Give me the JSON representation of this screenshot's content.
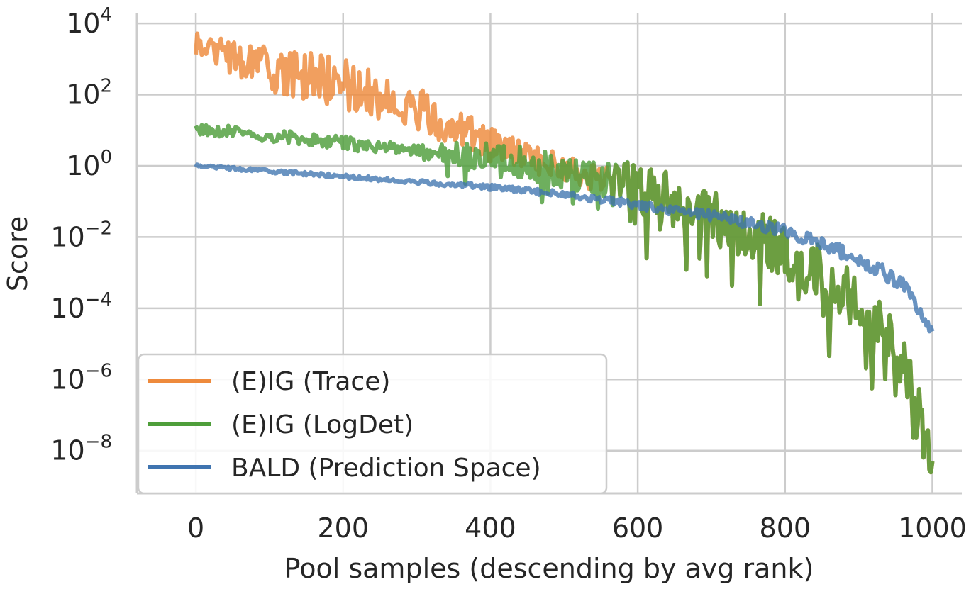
{
  "chart_data": {
    "type": "line",
    "title": "",
    "xlabel": "Pool samples (descending by avg rank)",
    "ylabel": "Score",
    "x_range": [
      0,
      1000
    ],
    "xlim": [
      -80,
      1040
    ],
    "ylim_log10": [
      -9.2,
      4.3
    ],
    "yscale": "log",
    "grid": true,
    "x_ticks": [
      0,
      200,
      400,
      600,
      800,
      1000
    ],
    "x_tick_labels": [
      "0",
      "200",
      "400",
      "600",
      "800",
      "1000"
    ],
    "y_ticks": [
      {
        "base": "10",
        "exp": "4",
        "log10": 4
      },
      {
        "base": "10",
        "exp": "2",
        "log10": 2
      },
      {
        "base": "10",
        "exp": "0",
        "log10": 0
      },
      {
        "base": "10",
        "exp": "−2",
        "log10": -2
      },
      {
        "base": "10",
        "exp": "−4",
        "log10": -4
      },
      {
        "base": "10",
        "exp": "−6",
        "log10": -6
      },
      {
        "base": "10",
        "exp": "−8",
        "log10": -8
      }
    ],
    "legend_position": "lower-left",
    "series": [
      {
        "name": "(E)IG (Trace)",
        "color": "#ee8a3c",
        "trend_log10": [
          [
            0,
            3.4
          ],
          [
            100,
            2.7
          ],
          [
            200,
            2.3
          ],
          [
            300,
            1.6
          ],
          [
            400,
            0.6
          ],
          [
            500,
            -0.1
          ],
          [
            600,
            -0.6
          ],
          [
            700,
            -1.4
          ],
          [
            800,
            -2.4
          ],
          [
            900,
            -3.8
          ],
          [
            960,
            -5.5
          ],
          [
            1000,
            -8.0
          ]
        ],
        "noise_log10": [
          [
            0,
            0.5
          ],
          [
            150,
            0.9
          ],
          [
            300,
            0.8
          ],
          [
            450,
            0.5
          ],
          [
            550,
            0.5
          ],
          [
            600,
            0.9
          ],
          [
            800,
            1.0
          ],
          [
            950,
            1.0
          ],
          [
            1000,
            0.7
          ]
        ]
      },
      {
        "name": "(E)IG (LogDet)",
        "color": "#4e9e3a",
        "trend_log10": [
          [
            0,
            1.05
          ],
          [
            100,
            0.85
          ],
          [
            200,
            0.65
          ],
          [
            300,
            0.4
          ],
          [
            400,
            0.2
          ],
          [
            500,
            -0.15
          ],
          [
            600,
            -0.6
          ],
          [
            700,
            -1.4
          ],
          [
            800,
            -2.4
          ],
          [
            900,
            -3.8
          ],
          [
            960,
            -5.5
          ],
          [
            1000,
            -8.0
          ]
        ],
        "noise_log10": [
          [
            0,
            0.2
          ],
          [
            300,
            0.25
          ],
          [
            400,
            0.6
          ],
          [
            550,
            0.6
          ],
          [
            600,
            0.9
          ],
          [
            800,
            1.0
          ],
          [
            950,
            1.0
          ],
          [
            1000,
            0.7
          ]
        ]
      },
      {
        "name": "BALD (Prediction Space)",
        "color": "#3f74b0",
        "trend_log10": [
          [
            0,
            0.0
          ],
          [
            100,
            -0.15
          ],
          [
            200,
            -0.3
          ],
          [
            300,
            -0.45
          ],
          [
            400,
            -0.6
          ],
          [
            500,
            -0.8
          ],
          [
            600,
            -1.1
          ],
          [
            700,
            -1.4
          ],
          [
            800,
            -1.8
          ],
          [
            900,
            -2.6
          ],
          [
            960,
            -3.3
          ],
          [
            1000,
            -4.7
          ]
        ],
        "noise_log10": [
          [
            0,
            0.08
          ],
          [
            300,
            0.1
          ],
          [
            500,
            0.15
          ],
          [
            600,
            0.2
          ],
          [
            800,
            0.3
          ],
          [
            950,
            0.35
          ],
          [
            1000,
            0.2
          ]
        ]
      }
    ]
  }
}
